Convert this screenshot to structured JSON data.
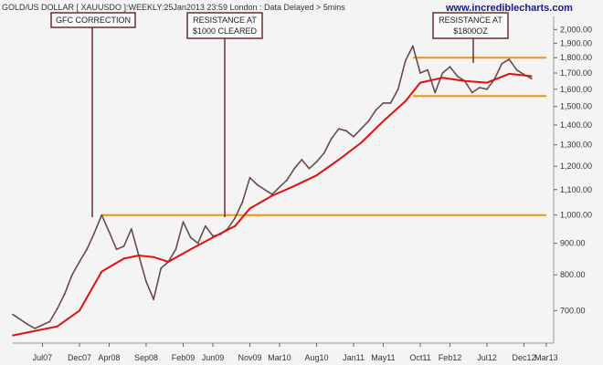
{
  "header": {
    "title": "GOLD/US DOLLAR [ XAUUSDO ]:WEEKLY:25Jan2013 23:59 London : Data Delayed > 5mins",
    "site": "www.incrediblecharts.com"
  },
  "annotations": [
    {
      "lines": [
        "GFC CORRECTION"
      ]
    },
    {
      "lines": [
        "RESISTANCE AT",
        "$1000 CLEARED"
      ]
    },
    {
      "lines": [
        "RESISTANCE AT",
        "$1800OZ"
      ]
    }
  ],
  "colors": {
    "background": "#f4f4f4",
    "price": "#6b4a4a",
    "moving_average": "#e01010",
    "resistance": "#f0960c",
    "annotation_border": "#6b2e2e"
  },
  "chart_data": {
    "type": "line",
    "title": "GOLD/US DOLLAR [ XAUUSDO ]:WEEKLY",
    "xlabel": "",
    "ylabel": "",
    "y_scale": "log",
    "ylim": [
      620,
      2100
    ],
    "x_ticks": [
      "Jul07",
      "Dec07",
      "Apr08",
      "Sep08",
      "Feb09",
      "Jun09",
      "Nov09",
      "Mar10",
      "Aug10",
      "Jan11",
      "May11",
      "Oct11",
      "Feb12",
      "Jul12",
      "Dec12",
      "Mar13"
    ],
    "y_ticks": [
      "700.00",
      "800.00",
      "900.00",
      "1,000.00",
      "1,100.00",
      "1,200.00",
      "1,300.00",
      "1,400.00",
      "1,500.00",
      "1,600.00",
      "1,700.00",
      "1,800.00",
      "1,900.00",
      "2,000.00"
    ],
    "reference_lines": [
      {
        "value": 1000,
        "from": "Mar08",
        "to": "Mar13"
      },
      {
        "value": 1800,
        "from": "Sep11",
        "to": "Mar13"
      },
      {
        "value": 1560,
        "from": "Sep11",
        "to": "Mar13"
      }
    ],
    "series": [
      {
        "kind": "price",
        "x": [
          "Mar07",
          "May07",
          "Jun07",
          "Aug07",
          "Sep07",
          "Oct07",
          "Nov07",
          "Dec07",
          "Jan08",
          "Feb08",
          "Mar08",
          "Apr08",
          "May08",
          "Jun08",
          "Jul08",
          "Aug08",
          "Sep08",
          "Oct08",
          "Nov08",
          "Dec08",
          "Jan09",
          "Feb09",
          "Mar09",
          "Apr09",
          "May09",
          "Jun09",
          "Jul09",
          "Aug09",
          "Sep09",
          "Oct09",
          "Nov09",
          "Dec09",
          "Jan10",
          "Feb10",
          "Mar10",
          "Apr10",
          "May10",
          "Jun10",
          "Jul10",
          "Aug10",
          "Sep10",
          "Oct10",
          "Nov10",
          "Dec10",
          "Jan11",
          "Feb11",
          "Mar11",
          "Apr11",
          "May11",
          "Jun11",
          "Jul11",
          "Aug11",
          "Sep11",
          "Oct11",
          "Nov11",
          "Dec11",
          "Jan12",
          "Feb12",
          "Mar12",
          "Apr12",
          "May12",
          "Jun12",
          "Jul12",
          "Aug12",
          "Sep12",
          "Oct12",
          "Nov12",
          "Dec12",
          "Jan13"
        ],
        "y": [
          690,
          665,
          655,
          672,
          705,
          745,
          800,
          840,
          880,
          935,
          1000,
          940,
          880,
          890,
          950,
          860,
          780,
          730,
          820,
          840,
          880,
          975,
          920,
          900,
          960,
          925,
          930,
          950,
          990,
          1050,
          1150,
          1120,
          1100,
          1080,
          1110,
          1140,
          1190,
          1230,
          1190,
          1220,
          1260,
          1330,
          1380,
          1370,
          1340,
          1380,
          1420,
          1480,
          1520,
          1520,
          1600,
          1780,
          1880,
          1700,
          1720,
          1580,
          1700,
          1740,
          1680,
          1650,
          1580,
          1610,
          1600,
          1660,
          1760,
          1790,
          1720,
          1690,
          1665
        ]
      },
      {
        "kind": "moving_average",
        "x": [
          "Mar07",
          "Sep07",
          "Dec07",
          "Mar08",
          "Jun08",
          "Aug08",
          "Oct08",
          "Dec08",
          "Mar09",
          "Jun09",
          "Sep09",
          "Nov09",
          "Feb10",
          "May10",
          "Aug10",
          "Nov10",
          "Feb11",
          "May11",
          "Aug11",
          "Oct11",
          "Jan12",
          "Apr12",
          "Jul12",
          "Oct12",
          "Jan13"
        ],
        "y": [
          638,
          660,
          700,
          810,
          850,
          860,
          855,
          840,
          880,
          920,
          960,
          1025,
          1075,
          1115,
          1160,
          1230,
          1310,
          1420,
          1530,
          1640,
          1670,
          1650,
          1640,
          1695,
          1680
        ]
      }
    ]
  }
}
